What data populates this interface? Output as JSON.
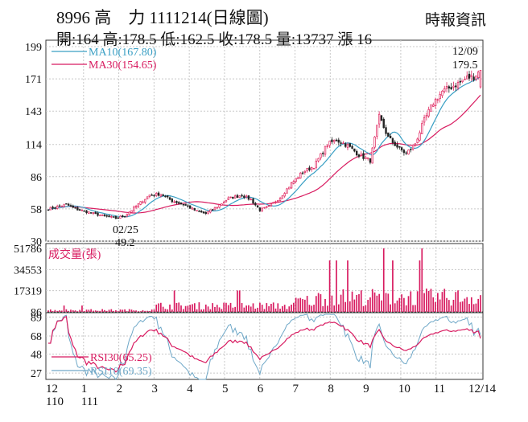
{
  "header": {
    "title": "8996 高　力 1111214(日線圖)",
    "stats": "開:164 高:178.5 低:162.5 收:178.5 量:13737 漲 16",
    "source": "時報資訊"
  },
  "colors": {
    "up": "#e0245e",
    "down": "#222222",
    "ma10": "#3a9fc4",
    "ma30": "#d81b60",
    "rsi30": "#d81b60",
    "rsi10": "#6fa8c8",
    "volume": "#d81b60",
    "grid": "#c8c8c8"
  },
  "chart_data": [
    {
      "type": "candlestick",
      "name": "price",
      "y_ticks": [
        199,
        171,
        143,
        114,
        86,
        58,
        30
      ],
      "ylim": [
        30,
        199
      ],
      "x_ticks": [
        "12",
        "1",
        "2",
        "3",
        "4",
        "5",
        "6",
        "7",
        "8",
        "9",
        "10",
        "11",
        "12/14"
      ],
      "x_ticks_sub": [
        "110",
        "111"
      ],
      "legend": [
        {
          "label": "MA10(167.80)",
          "color": "#3a9fc4"
        },
        {
          "label": "MA30(154.65)",
          "color": "#d81b60"
        }
      ],
      "annotations": [
        {
          "label": "02/25",
          "value": "49.2",
          "kind": "low"
        },
        {
          "label": "12/09",
          "value": "179.5",
          "kind": "high"
        }
      ],
      "last": {
        "open": 164,
        "high": 178.5,
        "low": 162.5,
        "close": 178.5
      },
      "close_anchors": [
        [
          0,
          58
        ],
        [
          8,
          62
        ],
        [
          12,
          58
        ],
        [
          18,
          55
        ],
        [
          24,
          52
        ],
        [
          30,
          50
        ],
        [
          34,
          52
        ],
        [
          40,
          62
        ],
        [
          45,
          70
        ],
        [
          50,
          71
        ],
        [
          55,
          65
        ],
        [
          60,
          62
        ],
        [
          66,
          56
        ],
        [
          70,
          54
        ],
        [
          75,
          60
        ],
        [
          80,
          67
        ],
        [
          86,
          70
        ],
        [
          90,
          66
        ],
        [
          94,
          57
        ],
        [
          98,
          60
        ],
        [
          103,
          68
        ],
        [
          108,
          80
        ],
        [
          113,
          90
        ],
        [
          118,
          95
        ],
        [
          124,
          114
        ],
        [
          128,
          118
        ],
        [
          133,
          113
        ],
        [
          138,
          105
        ],
        [
          143,
          100
        ],
        [
          147,
          138
        ],
        [
          151,
          120
        ],
        [
          155,
          112
        ],
        [
          159,
          106
        ],
        [
          163,
          115
        ],
        [
          167,
          135
        ],
        [
          171,
          150
        ],
        [
          175,
          160
        ],
        [
          179,
          164
        ],
        [
          183,
          168
        ],
        [
          186,
          172
        ],
        [
          189,
          173
        ],
        [
          192,
          178.5
        ]
      ],
      "days": 193
    },
    {
      "type": "bar",
      "name": "volume",
      "label": "成交量(張)",
      "y_ticks": [
        51786,
        34553,
        17319,
        86
      ],
      "ylim": [
        86,
        51786
      ],
      "last_value": 13737
    },
    {
      "type": "line",
      "name": "rsi",
      "y_ticks": [
        89,
        68,
        48,
        27
      ],
      "ylim": [
        20,
        92
      ],
      "series": [
        {
          "name": "RSI30(65.25)",
          "color": "#d81b60",
          "last": 65.25
        },
        {
          "name": "RSI10(69.35)",
          "color": "#6fa8c8",
          "last": 69.35
        }
      ]
    }
  ]
}
